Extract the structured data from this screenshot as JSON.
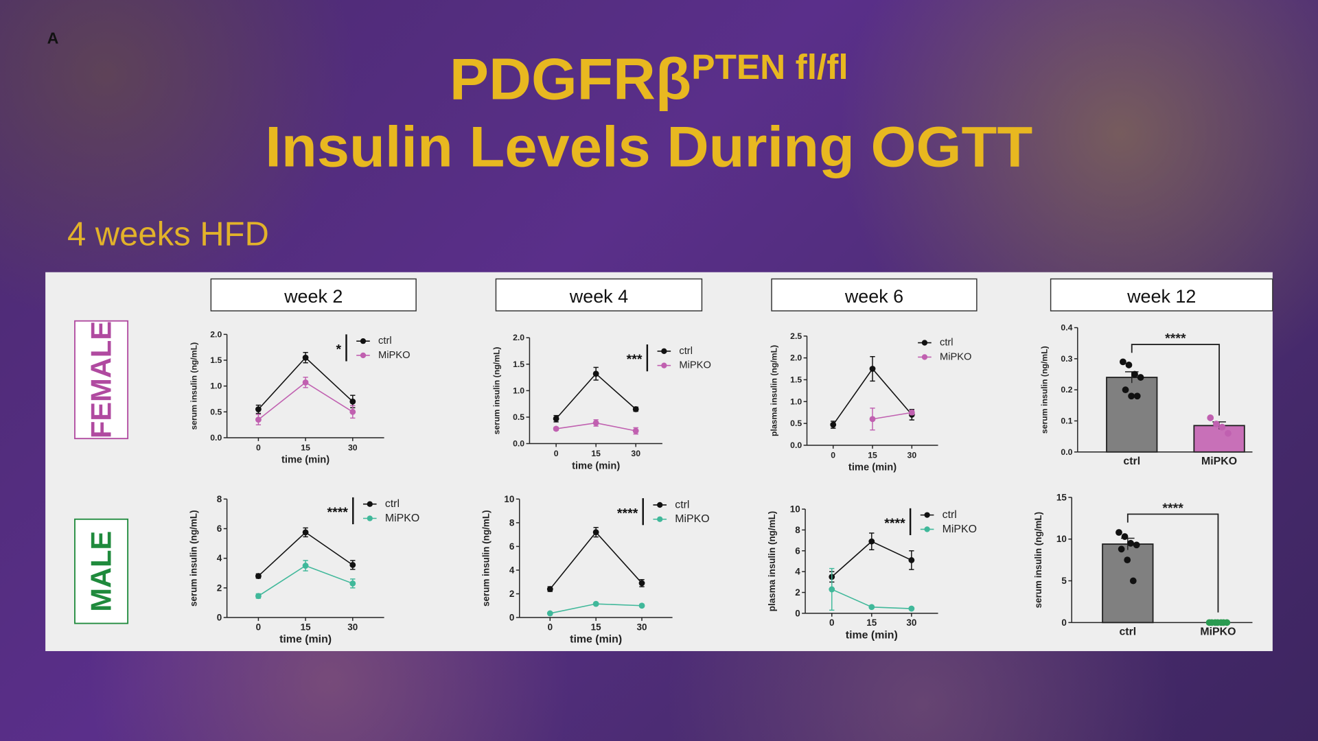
{
  "slide": {
    "label": "A",
    "title": "PDGFRβ",
    "title_sup": "PTEN fl/fl",
    "title_line2": "Insulin Levels During OGTT",
    "subtitle": "4 weeks HFD",
    "columns": [
      "week 2",
      "week 4",
      "week 6",
      "week 12"
    ],
    "rows": [
      "FEMALE",
      "MALE"
    ]
  },
  "chart_data": [
    {
      "type": "line",
      "x": [
        0,
        15,
        30
      ],
      "xlim": [
        -10,
        40
      ],
      "xticks": [
        0,
        15,
        30
      ],
      "xlabel": "time (min)",
      "ylabel": "serum insulin (ng/mL)",
      "ylim": [
        0,
        2
      ],
      "yticks": [
        {
          "value": 0,
          "label": "0.0"
        },
        {
          "value": 0.5,
          "label": "0.5"
        },
        {
          "value": 1,
          "label": "1.0"
        },
        {
          "value": 1.5,
          "label": "1.5"
        },
        {
          "value": 2,
          "label": "2.0"
        }
      ],
      "annotation": "*",
      "series": [
        {
          "name": "ctrl",
          "color": "#111111",
          "values": [
            0.55,
            1.55,
            0.7
          ],
          "errors": [
            0.08,
            0.1,
            0.12
          ]
        },
        {
          "name": "MiPKO",
          "color": "#c060b0",
          "values": [
            0.35,
            1.07,
            0.5
          ],
          "errors": [
            0.1,
            0.1,
            0.12
          ]
        }
      ]
    },
    {
      "type": "line",
      "x": [
        0,
        15,
        30
      ],
      "xlim": [
        -10,
        40
      ],
      "xticks": [
        0,
        15,
        30
      ],
      "xlabel": "time (min)",
      "ylabel": "serum insulin (ng/mL)",
      "ylim": [
        0,
        2
      ],
      "yticks": [
        {
          "value": 0,
          "label": "0.0"
        },
        {
          "value": 0.5,
          "label": "0.5"
        },
        {
          "value": 1,
          "label": "1.0"
        },
        {
          "value": 1.5,
          "label": "1.5"
        },
        {
          "value": 2,
          "label": "2.0"
        }
      ],
      "annotation": "***",
      "series": [
        {
          "name": "ctrl",
          "color": "#111111",
          "values": [
            0.47,
            1.32,
            0.65
          ],
          "errors": [
            0.06,
            0.12,
            0.04
          ]
        },
        {
          "name": "MiPKO",
          "color": "#c060b0",
          "values": [
            0.28,
            0.39,
            0.24
          ],
          "errors": [
            0.03,
            0.06,
            0.06
          ]
        }
      ]
    },
    {
      "type": "line",
      "x": [
        0,
        15,
        30
      ],
      "xlim": [
        -10,
        40
      ],
      "xticks": [
        0,
        15,
        30
      ],
      "xlabel": "time (min)",
      "ylabel": "plasma insulin (ng/mL)",
      "ylim": [
        0,
        2.5
      ],
      "yticks": [
        {
          "value": 0,
          "label": "0.0"
        },
        {
          "value": 0.5,
          "label": "0.5"
        },
        {
          "value": 1,
          "label": "1.0"
        },
        {
          "value": 1.5,
          "label": "1.5"
        },
        {
          "value": 2,
          "label": "2.0"
        },
        {
          "value": 2.5,
          "label": "2.5"
        }
      ],
      "series": [
        {
          "name": "ctrl",
          "color": "#111111",
          "values": [
            0.47,
            1.75,
            0.7
          ],
          "errors": [
            0.08,
            0.28,
            0.12
          ]
        },
        {
          "name": "MiPKO",
          "color": "#c060b0",
          "values": [
            null,
            0.6,
            0.75
          ],
          "errors": [
            null,
            0.25,
            0.05
          ]
        }
      ]
    },
    {
      "type": "bar",
      "categories": [
        "ctrl",
        "MiPKO"
      ],
      "values": [
        0.24,
        0.085
      ],
      "errors": [
        0.018,
        0.012
      ],
      "colors": [
        "#808080",
        "#c870b8"
      ],
      "ylabel": "serum insulin (ng/mL)",
      "ylim": [
        0,
        0.4
      ],
      "yticks": [
        {
          "value": 0,
          "label": "0.0"
        },
        {
          "value": 0.1,
          "label": "0.1"
        },
        {
          "value": 0.2,
          "label": "0.2"
        },
        {
          "value": 0.3,
          "label": "0.3"
        },
        {
          "value": 0.4,
          "label": "0.4"
        }
      ],
      "annotation": "****",
      "points": [
        [
          0.29,
          0.28,
          0.25,
          0.24,
          0.2,
          0.18,
          0.18
        ],
        [
          0.11,
          0.09,
          0.08,
          0.06
        ]
      ],
      "point_colors": [
        "#111111",
        "#c060b0"
      ]
    },
    {
      "type": "line",
      "x": [
        0,
        15,
        30
      ],
      "xlim": [
        -10,
        40
      ],
      "xticks": [
        0,
        15,
        30
      ],
      "xlabel": "time (min)",
      "ylabel": "serum insulin (ng/mL)",
      "ylim": [
        0,
        8
      ],
      "yticks": [
        0,
        2,
        4,
        6,
        8
      ],
      "annotation": "****",
      "series": [
        {
          "name": "ctrl",
          "color": "#111111",
          "values": [
            2.8,
            5.75,
            3.55
          ],
          "errors": [
            0.15,
            0.3,
            0.3
          ]
        },
        {
          "name": "MiPKO",
          "color": "#40b89a",
          "values": [
            1.45,
            3.5,
            2.3
          ],
          "errors": [
            0.15,
            0.35,
            0.3
          ]
        }
      ]
    },
    {
      "type": "line",
      "x": [
        0,
        15,
        30
      ],
      "xlim": [
        -10,
        40
      ],
      "xticks": [
        0,
        15,
        30
      ],
      "xlabel": "time (min)",
      "ylabel": "serum insulin (ng/mL)",
      "ylim": [
        0,
        10
      ],
      "yticks": [
        0,
        2,
        4,
        6,
        8,
        10
      ],
      "annotation": "****",
      "series": [
        {
          "name": "ctrl",
          "color": "#111111",
          "values": [
            2.4,
            7.2,
            2.9
          ],
          "errors": [
            0.2,
            0.4,
            0.3
          ]
        },
        {
          "name": "MiPKO",
          "color": "#40b89a",
          "values": [
            0.35,
            1.15,
            1.0
          ],
          "errors": [
            0.05,
            0.1,
            0.1
          ]
        }
      ]
    },
    {
      "type": "line",
      "x": [
        0,
        15,
        30
      ],
      "xlim": [
        -10,
        40
      ],
      "xticks": [
        0,
        15,
        30
      ],
      "xlabel": "time (min)",
      "ylabel": "plasma insulin (ng/mL)",
      "ylim": [
        0,
        10
      ],
      "yticks": [
        0,
        2,
        4,
        6,
        8,
        10
      ],
      "annotation": "****",
      "series": [
        {
          "name": "ctrl",
          "color": "#111111",
          "values": [
            3.5,
            6.9,
            5.1
          ],
          "errors": [
            0.5,
            0.8,
            0.9
          ]
        },
        {
          "name": "MiPKO",
          "color": "#40b89a",
          "values": [
            2.3,
            0.6,
            0.45
          ],
          "errors": [
            2.0,
            0.05,
            0.05
          ]
        }
      ]
    },
    {
      "type": "bar",
      "categories": [
        "ctrl",
        "MiPKO"
      ],
      "values": [
        9.4,
        0
      ],
      "errors": [
        0.7,
        0
      ],
      "colors": [
        "#808080",
        "#2a9a50"
      ],
      "ylabel": "serum insulin (ng/mL)",
      "ylim": [
        0,
        15
      ],
      "yticks": [
        0,
        5,
        10,
        15
      ],
      "annotation": "****",
      "points": [
        [
          10.8,
          10.3,
          9.5,
          9.3,
          8.8,
          7.5,
          5
        ],
        [
          0,
          0,
          0,
          0,
          0,
          0,
          0
        ]
      ],
      "point_colors": [
        "#111111",
        "#2a9a50"
      ]
    }
  ]
}
